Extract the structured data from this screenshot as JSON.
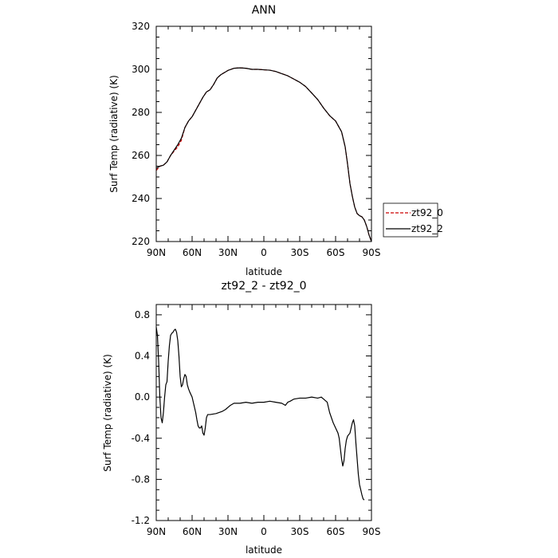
{
  "chart_data": [
    {
      "type": "line",
      "title": "ANN",
      "xlabel": "latitude",
      "ylabel": "Surf Temp (radiative) (K)",
      "xlim": [
        90,
        -90
      ],
      "ylim": [
        220,
        320
      ],
      "yticks": [
        220,
        240,
        260,
        280,
        300,
        320
      ],
      "xticks": [
        90,
        60,
        30,
        0,
        -30,
        -60,
        -90
      ],
      "xtick_labels": [
        "90N",
        "60N",
        "30N",
        "0",
        "30S",
        "60S",
        "90S"
      ],
      "legend": {
        "placement": "right-outside",
        "entries": [
          "zt92_0",
          "zt92_2"
        ]
      },
      "series": [
        {
          "name": "zt92_0",
          "color": "#cc0000",
          "dash": "dashed",
          "points": [
            [
              90,
              253
            ],
            [
              87,
              255
            ],
            [
              84,
              255.5
            ],
            [
              81,
              257
            ],
            [
              78,
              260
            ],
            [
              75,
              262
            ],
            [
              72,
              264
            ],
            [
              69,
              267
            ],
            [
              66,
              273
            ],
            [
              63,
              276
            ],
            [
              60,
              278
            ],
            [
              57,
              281
            ],
            [
              54,
              284
            ],
            [
              51,
              287
            ],
            [
              48,
              289.5
            ],
            [
              45,
              290.5
            ],
            [
              42,
              293
            ],
            [
              39,
              296
            ],
            [
              36,
              297.5
            ],
            [
              30,
              299.5
            ],
            [
              25,
              300.5
            ],
            [
              20,
              300.7
            ],
            [
              15,
              300.5
            ],
            [
              10,
              300
            ],
            [
              5,
              300
            ],
            [
              0,
              299.8
            ],
            [
              -5,
              299.6
            ],
            [
              -10,
              299
            ],
            [
              -15,
              298
            ],
            [
              -20,
              297
            ],
            [
              -25,
              295.5
            ],
            [
              -30,
              294
            ],
            [
              -35,
              292
            ],
            [
              -40,
              289
            ],
            [
              -45,
              286
            ],
            [
              -50,
              282
            ],
            [
              -55,
              278.5
            ],
            [
              -60,
              276
            ],
            [
              -65,
              271
            ],
            [
              -68,
              264
            ],
            [
              -70,
              256
            ],
            [
              -72,
              247
            ],
            [
              -74,
              241
            ],
            [
              -76,
              236
            ],
            [
              -78,
              233
            ],
            [
              -80,
              232
            ],
            [
              -82,
              231.5
            ],
            [
              -84,
              230
            ],
            [
              -86,
              227
            ],
            [
              -88,
              223
            ],
            [
              -90,
              220
            ]
          ]
        },
        {
          "name": "zt92_2",
          "color": "#000000",
          "dash": "solid",
          "points": [
            [
              90,
              254
            ],
            [
              87,
              255
            ],
            [
              84,
              255.5
            ],
            [
              81,
              257
            ],
            [
              78,
              260
            ],
            [
              75,
              262.5
            ],
            [
              72,
              265
            ],
            [
              69,
              268
            ],
            [
              66,
              273
            ],
            [
              63,
              276
            ],
            [
              60,
              278
            ],
            [
              57,
              281
            ],
            [
              54,
              284
            ],
            [
              51,
              287
            ],
            [
              48,
              289.5
            ],
            [
              45,
              290.5
            ],
            [
              42,
              293
            ],
            [
              39,
              296
            ],
            [
              36,
              297.5
            ],
            [
              30,
              299.5
            ],
            [
              25,
              300.5
            ],
            [
              20,
              300.7
            ],
            [
              15,
              300.5
            ],
            [
              10,
              300
            ],
            [
              5,
              300
            ],
            [
              0,
              299.8
            ],
            [
              -5,
              299.6
            ],
            [
              -10,
              299
            ],
            [
              -15,
              298
            ],
            [
              -20,
              297
            ],
            [
              -25,
              295.5
            ],
            [
              -30,
              294
            ],
            [
              -35,
              292
            ],
            [
              -40,
              289
            ],
            [
              -45,
              286
            ],
            [
              -50,
              282
            ],
            [
              -55,
              278.5
            ],
            [
              -60,
              276
            ],
            [
              -65,
              271
            ],
            [
              -68,
              264
            ],
            [
              -70,
              256
            ],
            [
              -72,
              247
            ],
            [
              -74,
              241
            ],
            [
              -76,
              236
            ],
            [
              -78,
              233
            ],
            [
              -80,
              232
            ],
            [
              -82,
              231.5
            ],
            [
              -84,
              230
            ],
            [
              -86,
              227
            ],
            [
              -88,
              223
            ],
            [
              -90,
              220
            ]
          ]
        }
      ]
    },
    {
      "type": "line",
      "title": "zt92_2 - zt92_0",
      "xlabel": "latitude",
      "ylabel": "Surf Temp (radiative) (K)",
      "xlim": [
        90,
        -90
      ],
      "ylim": [
        -1.2,
        0.9
      ],
      "yticks": [
        -1.2,
        -0.8,
        -0.4,
        0.0,
        0.4,
        0.8
      ],
      "ytick_labels": [
        "-1.2",
        "-0.8",
        "-0.4",
        "0.0",
        "0.4",
        "0.8"
      ],
      "xticks": [
        90,
        60,
        30,
        0,
        -30,
        -60,
        -90
      ],
      "xtick_labels": [
        "90N",
        "60N",
        "30N",
        "0",
        "30S",
        "60S",
        "90S"
      ],
      "series": [
        {
          "color": "#000000",
          "dash": "solid",
          "points": [
            [
              90,
              0.68
            ],
            [
              89,
              0.6
            ],
            [
              88,
              0.35
            ],
            [
              87,
              0.0
            ],
            [
              86,
              -0.2
            ],
            [
              85,
              -0.25
            ],
            [
              84,
              -0.15
            ],
            [
              83,
              0.0
            ],
            [
              82,
              0.12
            ],
            [
              81,
              0.15
            ],
            [
              80,
              0.35
            ],
            [
              79,
              0.5
            ],
            [
              78,
              0.6
            ],
            [
              77,
              0.62
            ],
            [
              76,
              0.63
            ],
            [
              75,
              0.65
            ],
            [
              74,
              0.66
            ],
            [
              73,
              0.63
            ],
            [
              72,
              0.55
            ],
            [
              71,
              0.4
            ],
            [
              70,
              0.2
            ],
            [
              69,
              0.1
            ],
            [
              68,
              0.12
            ],
            [
              67,
              0.18
            ],
            [
              66,
              0.22
            ],
            [
              65,
              0.2
            ],
            [
              64,
              0.12
            ],
            [
              63,
              0.08
            ],
            [
              62,
              0.05
            ],
            [
              60,
              0.0
            ],
            [
              58,
              -0.1
            ],
            [
              57,
              -0.15
            ],
            [
              56,
              -0.22
            ],
            [
              55,
              -0.28
            ],
            [
              54,
              -0.3
            ],
            [
              53,
              -0.3
            ],
            [
              52,
              -0.28
            ],
            [
              51,
              -0.35
            ],
            [
              50,
              -0.37
            ],
            [
              49,
              -0.3
            ],
            [
              48,
              -0.2
            ],
            [
              47,
              -0.17
            ],
            [
              45,
              -0.17
            ],
            [
              40,
              -0.16
            ],
            [
              35,
              -0.14
            ],
            [
              32,
              -0.12
            ],
            [
              28,
              -0.08
            ],
            [
              25,
              -0.06
            ],
            [
              20,
              -0.06
            ],
            [
              15,
              -0.05
            ],
            [
              10,
              -0.06
            ],
            [
              5,
              -0.05
            ],
            [
              0,
              -0.05
            ],
            [
              -5,
              -0.04
            ],
            [
              -10,
              -0.05
            ],
            [
              -15,
              -0.06
            ],
            [
              -18,
              -0.08
            ],
            [
              -20,
              -0.05
            ],
            [
              -22,
              -0.04
            ],
            [
              -25,
              -0.02
            ],
            [
              -30,
              -0.01
            ],
            [
              -35,
              -0.01
            ],
            [
              -40,
              0.0
            ],
            [
              -45,
              -0.01
            ],
            [
              -48,
              0.0
            ],
            [
              -50,
              -0.02
            ],
            [
              -53,
              -0.05
            ],
            [
              -55,
              -0.15
            ],
            [
              -58,
              -0.25
            ],
            [
              -60,
              -0.3
            ],
            [
              -62,
              -0.35
            ],
            [
              -63,
              -0.4
            ],
            [
              -64,
              -0.5
            ],
            [
              -65,
              -0.6
            ],
            [
              -66,
              -0.67
            ],
            [
              -67,
              -0.62
            ],
            [
              -68,
              -0.5
            ],
            [
              -69,
              -0.42
            ],
            [
              -70,
              -0.38
            ],
            [
              -72,
              -0.35
            ],
            [
              -73,
              -0.3
            ],
            [
              -74,
              -0.25
            ],
            [
              -75,
              -0.22
            ],
            [
              -76,
              -0.28
            ],
            [
              -77,
              -0.45
            ],
            [
              -78,
              -0.6
            ],
            [
              -79,
              -0.75
            ],
            [
              -80,
              -0.85
            ],
            [
              -81,
              -0.9
            ],
            [
              -82,
              -0.95
            ],
            [
              -83,
              -0.99
            ],
            [
              -84,
              -1.0
            ]
          ]
        }
      ]
    }
  ]
}
